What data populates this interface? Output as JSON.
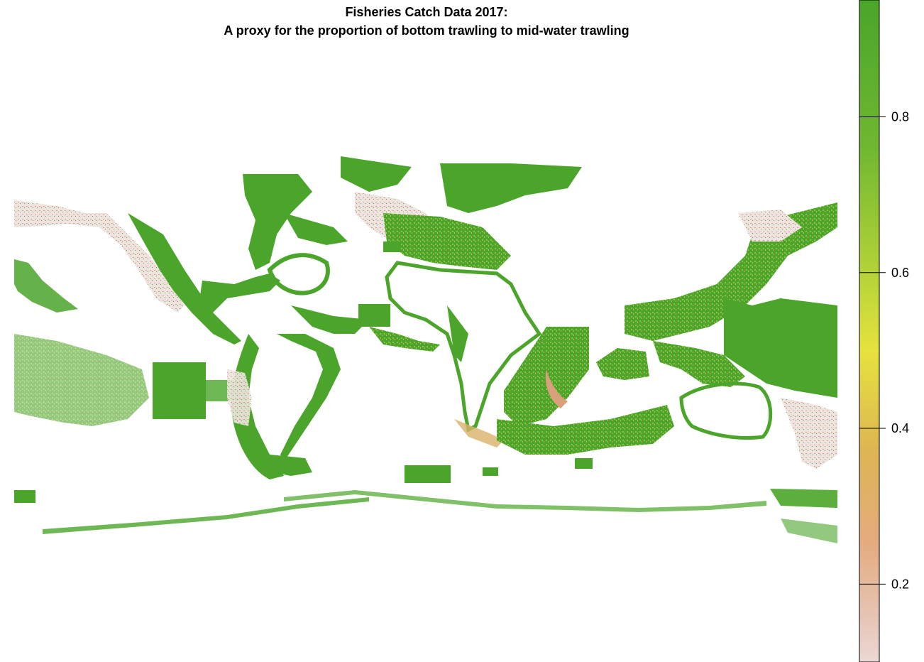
{
  "title_line1": "Fisheries Catch Data 2017:",
  "title_line2": "A proxy for the proportion of bottom trawling to mid-water trawling",
  "colors": {
    "ocean_no_data": "#ffffff",
    "high": "#4aa52a",
    "mid": "#e6e23e",
    "low": "#e8cfc8",
    "bottom": "#f1f1f1"
  },
  "legend": {
    "ticks": [
      {
        "value": 0.2,
        "label": "0.2"
      },
      {
        "value": 0.4,
        "label": "0.4"
      },
      {
        "value": 0.6,
        "label": "0.6"
      },
      {
        "value": 0.8,
        "label": "0.8"
      }
    ],
    "range": [
      0.1,
      0.95
    ]
  }
}
